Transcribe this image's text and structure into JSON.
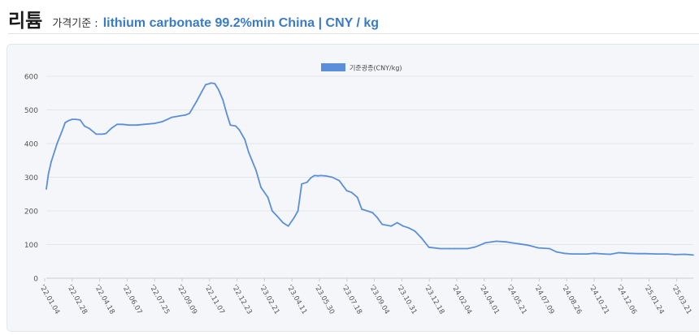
{
  "header": {
    "title": "리튬",
    "prefix": "가격기준 :",
    "subtitle": "lithium carbonate 99.2%min China | CNY / kg"
  },
  "chart_data": {
    "type": "line",
    "legend": {
      "label": "기준광종(CNY/kg)",
      "position": "top-center"
    },
    "color": "#5b8fd9",
    "ylim": [
      0,
      600
    ],
    "yticks": [
      0,
      100,
      200,
      300,
      400,
      500,
      600
    ],
    "xlim": [
      "2022-01-04",
      "2025-04-24"
    ],
    "xticks": [
      "'22.01.04",
      "'22.02.28",
      "'22.04.18",
      "'22.06.07",
      "'22.07.25",
      "'22.09.09",
      "'22.11.07",
      "'22.12.23",
      "'23.02.21",
      "'23.04.11",
      "'23.05.30",
      "'23.07.18",
      "'23.09.04",
      "'23.10.31",
      "'23.12.18",
      "'24.02.04",
      "'24.04.01",
      "'24.05.21",
      "'24.07.09",
      "'24.08.26",
      "'24.10.21",
      "'24.12.06",
      "'25.01.24",
      "'25.03.21"
    ],
    "grid": true,
    "series": [
      {
        "name": "기준광종(CNY/kg)",
        "x": [
          "2022-01-04",
          "2022-01-08",
          "2022-01-13",
          "2022-01-19",
          "2022-01-24",
          "2022-02-03",
          "2022-02-08",
          "2022-02-14",
          "2022-02-21",
          "2022-02-28",
          "2022-03-08",
          "2022-03-16",
          "2022-03-25",
          "2022-04-07",
          "2022-04-18",
          "2022-04-25",
          "2022-05-05",
          "2022-05-16",
          "2022-05-26",
          "2022-06-07",
          "2022-06-13",
          "2022-06-22",
          "2022-07-05",
          "2022-07-25",
          "2022-08-08",
          "2022-08-18",
          "2022-08-26",
          "2022-09-09",
          "2022-09-21",
          "2022-09-28",
          "2022-10-11",
          "2022-10-21",
          "2022-10-28",
          "2022-11-04",
          "2022-11-07",
          "2022-11-14",
          "2022-11-21",
          "2022-11-29",
          "2022-12-06",
          "2022-12-13",
          "2022-12-23",
          "2022-12-30",
          "2023-01-09",
          "2023-01-16",
          "2023-01-30",
          "2023-02-08",
          "2023-02-21",
          "2023-03-01",
          "2023-03-10",
          "2023-03-21",
          "2023-03-31",
          "2023-04-11",
          "2023-04-18",
          "2023-04-25",
          "2023-05-05",
          "2023-05-12",
          "2023-05-19",
          "2023-05-26",
          "2023-05-30",
          "2023-06-08",
          "2023-06-21",
          "2023-07-04",
          "2023-07-18",
          "2023-07-27",
          "2023-08-07",
          "2023-08-15",
          "2023-08-25",
          "2023-09-04",
          "2023-09-13",
          "2023-09-22",
          "2023-10-09",
          "2023-10-20",
          "2023-10-31",
          "2023-11-10",
          "2023-11-22",
          "2023-12-04",
          "2023-12-18",
          "2024-01-08",
          "2024-01-25",
          "2024-02-04",
          "2024-02-28",
          "2024-03-12",
          "2024-03-22",
          "2024-04-01",
          "2024-04-22",
          "2024-05-10",
          "2024-05-21",
          "2024-06-04",
          "2024-06-20",
          "2024-07-09",
          "2024-07-30",
          "2024-08-12",
          "2024-08-26",
          "2024-09-10",
          "2024-09-20",
          "2024-10-08",
          "2024-10-21",
          "2024-11-08",
          "2024-11-20",
          "2024-12-06",
          "2024-12-25",
          "2025-01-10",
          "2025-01-24",
          "2025-02-14",
          "2025-03-07",
          "2025-03-21",
          "2025-04-08",
          "2025-04-24"
        ],
        "values": [
          265,
          310,
          345,
          375,
          400,
          440,
          462,
          468,
          472,
          472,
          470,
          452,
          445,
          428,
          428,
          430,
          445,
          457,
          457,
          455,
          455,
          455,
          457,
          460,
          465,
          472,
          478,
          482,
          485,
          490,
          525,
          555,
          575,
          578,
          580,
          578,
          560,
          530,
          490,
          455,
          452,
          440,
          412,
          375,
          320,
          270,
          240,
          200,
          185,
          165,
          155,
          180,
          200,
          280,
          285,
          298,
          305,
          304,
          305,
          304,
          300,
          290,
          260,
          255,
          240,
          205,
          200,
          195,
          180,
          160,
          155,
          165,
          155,
          150,
          140,
          120,
          92,
          88,
          88,
          88,
          88,
          92,
          98,
          105,
          110,
          108,
          105,
          102,
          98,
          90,
          88,
          78,
          74,
          72,
          72,
          72,
          74,
          72,
          71,
          76,
          74,
          73,
          73,
          72,
          72,
          70,
          71,
          69
        ]
      }
    ]
  }
}
